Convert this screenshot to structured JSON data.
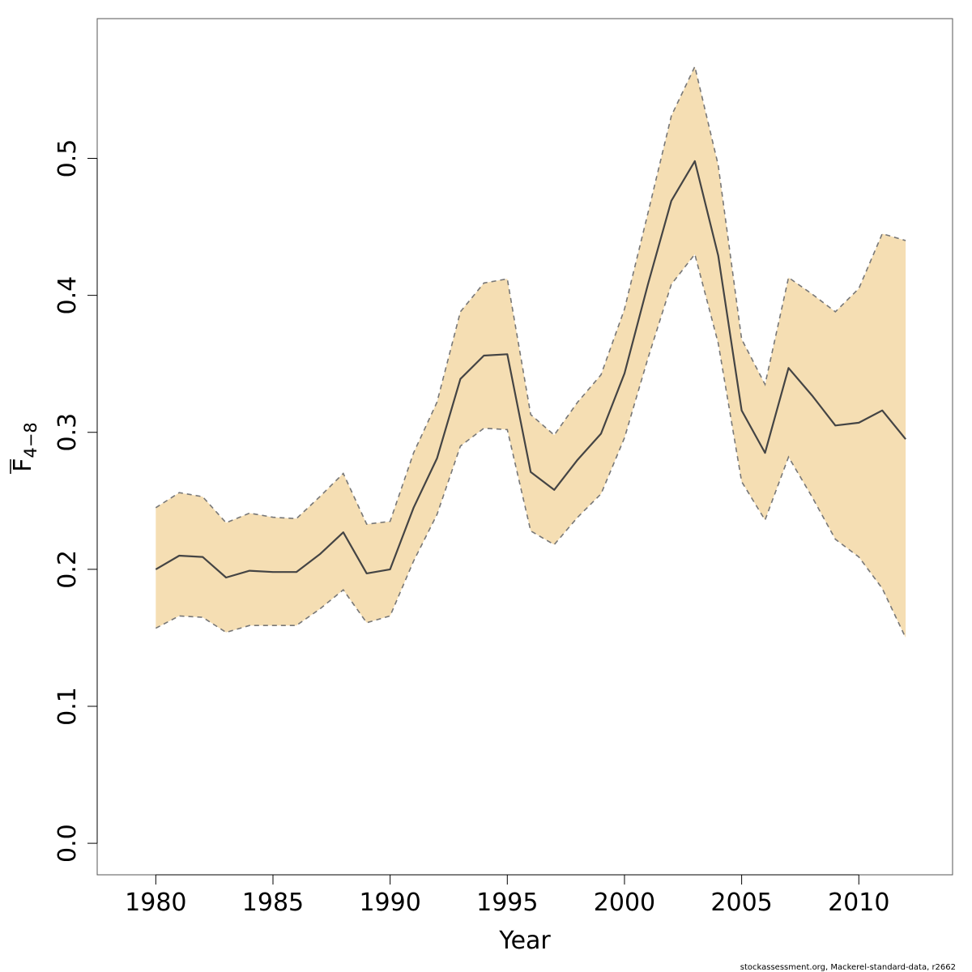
{
  "chart_data": {
    "type": "line",
    "xlabel": "Year",
    "ylabel": {
      "symbol": "F",
      "subscript": "4−8"
    },
    "xlim": [
      1977.5,
      2014
    ],
    "ylim": [
      -0.023,
      0.602
    ],
    "x_ticks": [
      1980,
      1985,
      1990,
      1995,
      2000,
      2005,
      2010
    ],
    "y_ticks": [
      0.0,
      0.1,
      0.2,
      0.3,
      0.4,
      0.5
    ],
    "y_tick_labels": [
      "0.0",
      "0.1",
      "0.2",
      "0.3",
      "0.4",
      "0.5"
    ],
    "grid": false,
    "x": [
      1980,
      1981,
      1982,
      1983,
      1984,
      1985,
      1986,
      1987,
      1988,
      1989,
      1990,
      1991,
      1992,
      1993,
      1994,
      1995,
      1996,
      1997,
      1998,
      1999,
      2000,
      2001,
      2002,
      2003,
      2004,
      2005,
      2006,
      2007,
      2008,
      2009,
      2010,
      2011,
      2012
    ],
    "estimate": [
      0.2,
      0.21,
      0.209,
      0.194,
      0.199,
      0.198,
      0.198,
      0.211,
      0.227,
      0.197,
      0.2,
      0.245,
      0.281,
      0.339,
      0.356,
      0.357,
      0.271,
      0.258,
      0.28,
      0.299,
      0.343,
      0.408,
      0.469,
      0.498,
      0.429,
      0.316,
      0.285,
      0.347,
      0.327,
      0.305,
      0.307,
      0.316,
      0.295
    ],
    "lower": [
      0.157,
      0.166,
      0.165,
      0.154,
      0.159,
      0.159,
      0.159,
      0.171,
      0.185,
      0.161,
      0.166,
      0.206,
      0.24,
      0.29,
      0.303,
      0.302,
      0.228,
      0.218,
      0.238,
      0.255,
      0.296,
      0.354,
      0.408,
      0.43,
      0.365,
      0.264,
      0.236,
      0.282,
      0.253,
      0.222,
      0.209,
      0.186,
      0.15
    ],
    "upper": [
      0.245,
      0.256,
      0.253,
      0.234,
      0.241,
      0.238,
      0.237,
      0.253,
      0.27,
      0.233,
      0.235,
      0.285,
      0.322,
      0.388,
      0.409,
      0.412,
      0.313,
      0.298,
      0.322,
      0.342,
      0.39,
      0.46,
      0.531,
      0.567,
      0.495,
      0.368,
      0.335,
      0.413,
      0.401,
      0.388,
      0.405,
      0.445,
      0.44
    ],
    "colors": {
      "band_fill": "#f5deb3",
      "estimate_line": "#444444",
      "bounds_line": "#777777",
      "frame": "#555555"
    }
  },
  "footer": "stockassessment.org, Mackerel-standard-data, r2662"
}
